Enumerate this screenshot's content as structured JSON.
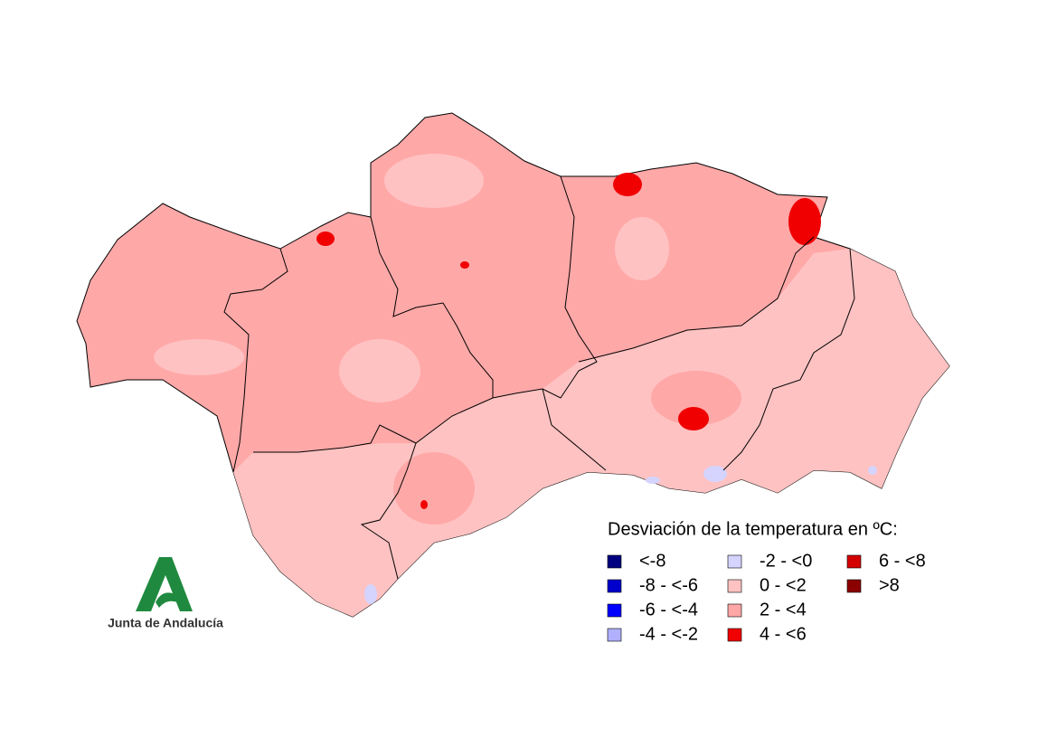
{
  "legend": {
    "title": "Desviación de la temperatura en ºC:",
    "items": [
      {
        "label": "<-8",
        "color": "#000080"
      },
      {
        "label": "-8 - <-6",
        "color": "#0000cd"
      },
      {
        "label": "-6 - <-4",
        "color": "#0000ff"
      },
      {
        "label": "-4 - <-2",
        "color": "#b0b0ff"
      },
      {
        "label": "-2 - <0",
        "color": "#d4d4ff"
      },
      {
        "label": "0 - <2",
        "color": "#ffc2c2"
      },
      {
        "label": "2 - <4",
        "color": "#ffa6a6"
      },
      {
        "label": "4 - <6",
        "color": "#f00000"
      },
      {
        "label": "6 - <8",
        "color": "#d40000"
      },
      {
        "label": ">8",
        "color": "#8b0000"
      }
    ]
  },
  "logo": {
    "text": "Junta de Andalucía"
  }
}
